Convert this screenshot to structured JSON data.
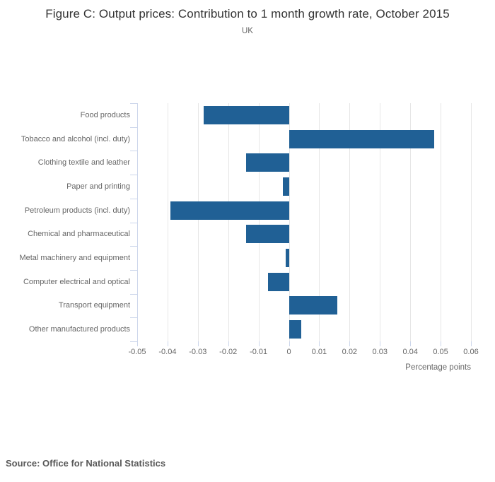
{
  "chart": {
    "title": "Figure C: Output prices: Contribution to 1 month growth rate, October 2015",
    "subtitle": "UK",
    "xlabel": "Percentage points"
  },
  "chart_data": {
    "type": "bar",
    "orientation": "horizontal",
    "title": "Figure C: Output prices: Contribution to 1 month growth rate, October 2015",
    "subtitle": "UK",
    "categories": [
      "Food products",
      "Tobacco and alcohol (incl. duty)",
      "Clothing textile and leather",
      "Paper and printing",
      "Petroleum products (incl. duty)",
      "Chemical and pharmaceutical",
      "Metal machinery and equipment",
      "Computer electrical and optical",
      "Transport equipment",
      "Other manufactured products"
    ],
    "values": [
      -0.028,
      0.048,
      -0.014,
      -0.002,
      -0.039,
      -0.014,
      -0.001,
      -0.007,
      0.016,
      0.004
    ],
    "xlabel": "Percentage points",
    "xlim": [
      -0.05,
      0.06
    ],
    "xticks": [
      -0.05,
      -0.04,
      -0.03,
      -0.02,
      -0.01,
      0,
      0.01,
      0.02,
      0.03,
      0.04,
      0.05,
      0.06
    ],
    "xtick_labels": [
      "-0.05",
      "-0.04",
      "-0.03",
      "-0.02",
      "-0.01",
      "0",
      "0.01",
      "0.02",
      "0.03",
      "0.04",
      "0.05",
      "0.06"
    ],
    "grid": true,
    "legend": "none",
    "bar_color": "#206095"
  },
  "colors": {
    "bar": "#206095",
    "gridline": "#e6e6e6",
    "axis_line": "#ccd6eb",
    "title_text": "#333333",
    "muted_text": "#666666",
    "source_text": "#595959"
  },
  "footer": {
    "source": "Source: Office for National Statistics"
  }
}
